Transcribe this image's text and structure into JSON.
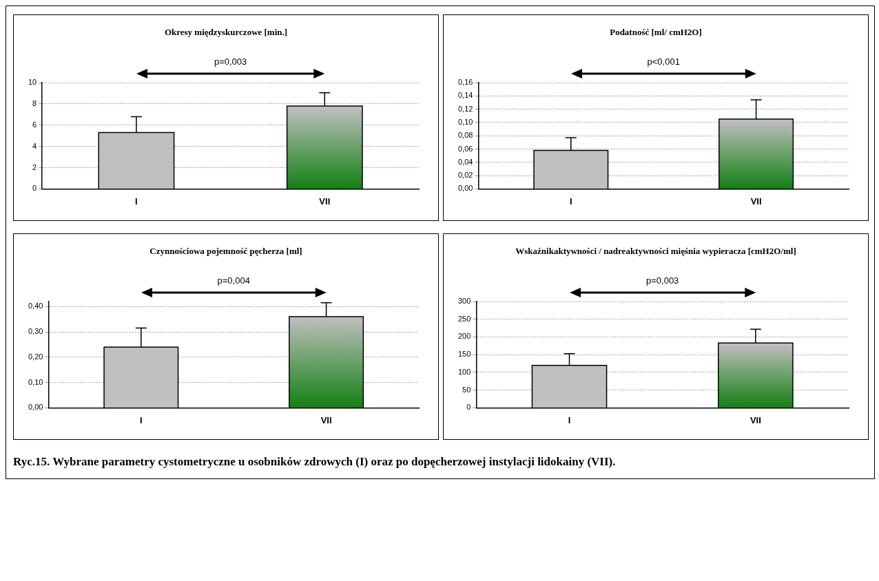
{
  "chart_data": [
    {
      "type": "bar",
      "title": "Okresy międzyskurczowe [min.]",
      "categories": [
        "I",
        "VII"
      ],
      "values": [
        5.3,
        7.8
      ],
      "colors": [
        "#c0c0c0",
        "#138013"
      ],
      "errors": [
        [
          5.3,
          6.8
        ],
        [
          7.8,
          9.05
        ]
      ],
      "ylim": [
        0,
        10
      ],
      "yticks": [
        0,
        2,
        4,
        6,
        8,
        10
      ],
      "grid": "y",
      "legend": false,
      "annotations": [
        "p=0,003"
      ]
    },
    {
      "type": "bar",
      "title": "Podatność [ml/ cmH2O]",
      "categories": [
        "I",
        "VII"
      ],
      "values": [
        0.058,
        0.105
      ],
      "colors": [
        "#c0c0c0",
        "#138013"
      ],
      "errors": [
        [
          0.058,
          0.077
        ],
        [
          0.105,
          0.134
        ]
      ],
      "ylim": [
        0,
        0.16
      ],
      "yticks": [
        {
          "value": 0,
          "label": "0,00"
        },
        {
          "value": 0.02,
          "label": "0,02"
        },
        {
          "value": 0.04,
          "label": "0,04"
        },
        {
          "value": 0.06,
          "label": "0,06"
        },
        {
          "value": 0.08,
          "label": "0,08"
        },
        {
          "value": 0.1,
          "label": "0,10"
        },
        {
          "value": 0.12,
          "label": "0,12"
        },
        {
          "value": 0.14,
          "label": "0,14"
        },
        {
          "value": 0.16,
          "label": "0,16"
        }
      ],
      "grid": "y",
      "legend": false,
      "annotations": [
        "p<0,001"
      ]
    },
    {
      "type": "bar",
      "title": "Czynnościowa pojemność pęcherza [ml]",
      "categories": [
        "I",
        "VII"
      ],
      "values": [
        0.24,
        0.36
      ],
      "colors": [
        "#c0c0c0",
        "#138013"
      ],
      "errors": [
        [
          0.24,
          0.315
        ],
        [
          0.36,
          0.415
        ]
      ],
      "ylim": [
        0,
        0.42
      ],
      "yticks": [
        {
          "value": 0,
          "label": "0,00"
        },
        {
          "value": 0.1,
          "label": "0,10"
        },
        {
          "value": 0.2,
          "label": "0,20"
        },
        {
          "value": 0.3,
          "label": "0,30"
        },
        {
          "value": 0.4,
          "label": "0,40"
        }
      ],
      "grid": "y",
      "legend": false,
      "annotations": [
        "p=0,004"
      ]
    },
    {
      "type": "bar",
      "title": "Wskaźnikaktywności / nadreaktywności mięśnia wypieracza [cmH2O/ml]",
      "categories": [
        "I",
        "VII"
      ],
      "values": [
        120,
        183
      ],
      "colors": [
        "#c0c0c0",
        "#138013"
      ],
      "errors": [
        [
          120,
          153
        ],
        [
          183,
          222
        ]
      ],
      "ylim": [
        0,
        300
      ],
      "yticks": [
        0,
        50,
        100,
        150,
        200,
        250,
        300
      ],
      "grid": "y",
      "legend": false,
      "annotations": [
        "p=0,003",
        "Ryc.15. Wybrane parametry cystometryczne u osobników zdrowych (I) oraz po dopęcherzowej instylacji lidokainy (VII)."
      ]
    }
  ]
}
